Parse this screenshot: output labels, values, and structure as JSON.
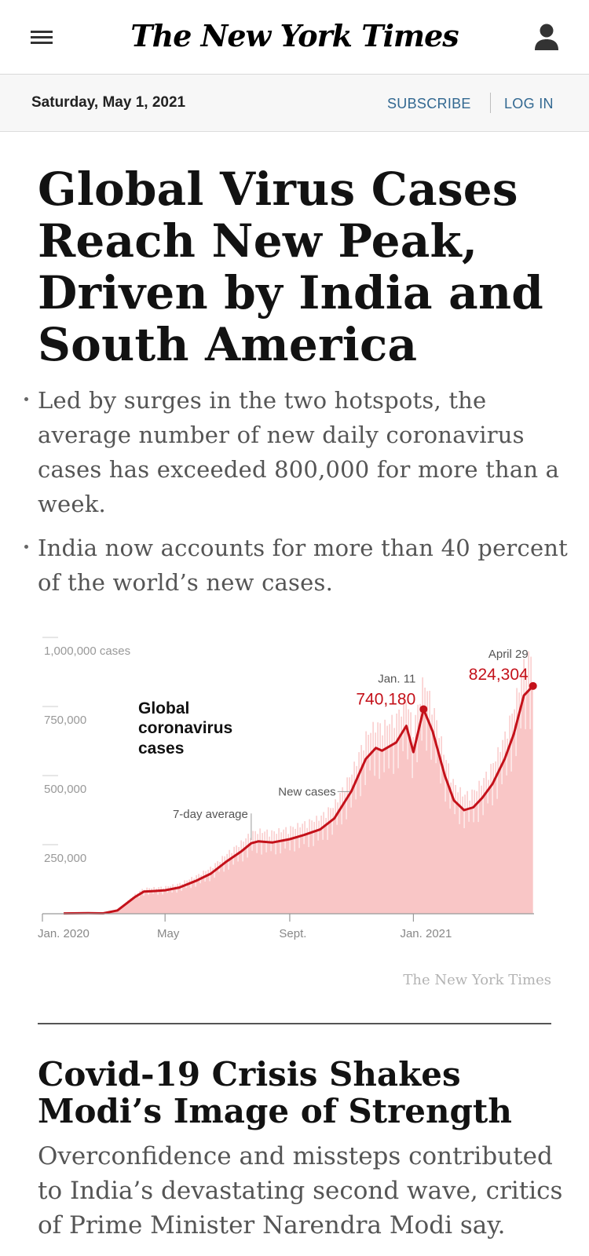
{
  "header": {
    "logo_text": "The New York Times",
    "menu_icon": "hamburger-menu-icon",
    "account_icon": "user-account-icon"
  },
  "datebar": {
    "date": "Saturday, May 1, 2021",
    "subscribe": "SUBSCRIBE",
    "login": "LOG IN"
  },
  "story1": {
    "headline": "Global Virus Cases Reach New Peak, Driven by India and South America",
    "bullets": [
      "Led by surges in the two hotspots, the average number of new daily coronavirus cases has exceeded 800,000 for more than a week.",
      "India now accounts for more than 40 percent of the world’s new cases."
    ],
    "credit": "The New York Times"
  },
  "chart_data": {
    "type": "area",
    "title": "Global coronavirus cases",
    "y_ticks": [
      "1,000,000 cases",
      "750,000",
      "500,000",
      "250,000"
    ],
    "y_tick_values": [
      1000000,
      750000,
      500000,
      250000
    ],
    "x_ticks": [
      "Jan. 2020",
      "May",
      "Sept.",
      "Jan. 2021"
    ],
    "x_tick_dates": [
      "2020-01-01",
      "2020-05-01",
      "2020-09-01",
      "2021-01-01"
    ],
    "ylim": [
      0,
      1000000
    ],
    "xlim": [
      "2020-01-01",
      "2021-04-30"
    ],
    "series": [
      {
        "name": "7-day average",
        "x": [
          "2020-01-22",
          "2020-02-15",
          "2020-03-01",
          "2020-03-15",
          "2020-04-01",
          "2020-04-10",
          "2020-04-20",
          "2020-05-01",
          "2020-05-15",
          "2020-06-01",
          "2020-06-15",
          "2020-07-01",
          "2020-07-15",
          "2020-07-25",
          "2020-08-01",
          "2020-08-15",
          "2020-09-01",
          "2020-09-15",
          "2020-10-01",
          "2020-10-15",
          "2020-11-01",
          "2020-11-15",
          "2020-11-25",
          "2020-12-01",
          "2020-12-15",
          "2020-12-25",
          "2021-01-01",
          "2021-01-11",
          "2021-01-20",
          "2021-02-01",
          "2021-02-10",
          "2021-02-20",
          "2021-03-01",
          "2021-03-10",
          "2021-03-20",
          "2021-04-01",
          "2021-04-10",
          "2021-04-20",
          "2021-04-29"
        ],
        "values": [
          1000,
          2000,
          1500,
          12000,
          60000,
          80000,
          82000,
          85000,
          95000,
          120000,
          145000,
          190000,
          225000,
          255000,
          262000,
          258000,
          270000,
          285000,
          305000,
          345000,
          445000,
          560000,
          600000,
          590000,
          620000,
          680000,
          585000,
          740180,
          660000,
          500000,
          410000,
          375000,
          385000,
          420000,
          470000,
          560000,
          650000,
          790000,
          824304
        ]
      }
    ],
    "annotations": [
      {
        "label": "Jan. 11",
        "value_label": "740,180",
        "date": "2021-01-11",
        "value": 740180
      },
      {
        "label": "April 29",
        "value_label": "824,304",
        "date": "2021-04-29",
        "value": 824304
      },
      {
        "label": "New cases"
      },
      {
        "label": "7-day average"
      }
    ],
    "colors": {
      "line": "#c4111a",
      "area": "#f9c6c6",
      "spike": "#ffffff"
    }
  },
  "story2": {
    "headline": "Covid-19 Crisis Shakes Modi’s Image of Strength",
    "summary": "Overconfidence and missteps contributed to India’s devastating second wave, critics of Prime Minister Narendra Modi say."
  }
}
